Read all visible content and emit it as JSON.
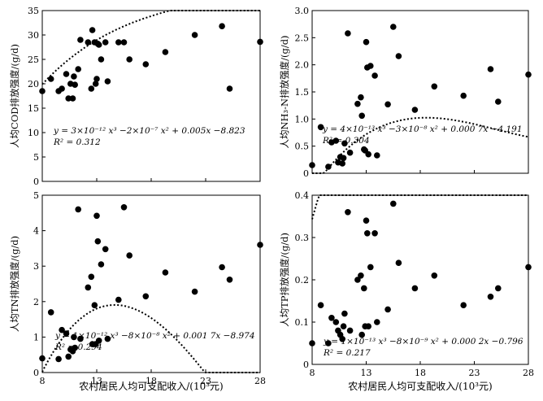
{
  "figure": {
    "xlabel_bottom": "农村居民人均可支配收入/(10³元)"
  },
  "chart_data": [
    {
      "type": "scatter",
      "ylabel": "人均COD排放强度/(g/d)",
      "xlim": [
        8,
        28
      ],
      "ylim": [
        0,
        35
      ],
      "xticks": [
        8,
        13,
        18,
        23,
        28
      ],
      "yticks": [
        0,
        5,
        10,
        15,
        20,
        25,
        30,
        35
      ],
      "ytick_labels": [
        "0",
        "5",
        "10",
        "15",
        "20",
        "25",
        "30",
        "35"
      ],
      "show_x_tick_labels": false,
      "grid": false,
      "equation": "y = 3×10⁻¹² x³ −2×10⁻⁷ x² + 0.005x −8.823",
      "r2": "R² = 0.312",
      "fit": [
        3e-12,
        -2e-07,
        0.005,
        -8.823
      ],
      "x": [
        8.0,
        8.8,
        9.5,
        9.8,
        10.2,
        10.4,
        10.6,
        10.8,
        10.9,
        11.0,
        11.3,
        11.5,
        12.2,
        12.5,
        12.6,
        12.8,
        12.9,
        13.0,
        13.1,
        13.2,
        13.4,
        13.8,
        14.0,
        15.0,
        15.5,
        16.0,
        17.5,
        19.3,
        22.0,
        24.5,
        25.2,
        28.0
      ],
      "y": [
        18.5,
        21.0,
        18.5,
        19.0,
        22.0,
        17.0,
        20.0,
        17.0,
        21.5,
        19.8,
        23.0,
        29.0,
        28.5,
        19.0,
        31.0,
        28.5,
        20.0,
        21.0,
        28.2,
        28.0,
        25.0,
        28.5,
        20.5,
        28.5,
        28.5,
        25.0,
        24.0,
        26.5,
        30.0,
        31.8,
        19.0,
        28.6
      ]
    },
    {
      "type": "scatter",
      "ylabel": "人均NH₃-N排放强度/(g/d)",
      "xlim": [
        8,
        28
      ],
      "ylim": [
        0,
        3.0
      ],
      "xticks": [
        8,
        13,
        18,
        23,
        28
      ],
      "yticks": [
        0,
        0.5,
        1.0,
        1.5,
        2.0,
        2.5,
        3.0
      ],
      "ytick_labels": [
        "0",
        "0.5",
        "1.0",
        "1.5",
        "2.0",
        "2.5",
        "3.0"
      ],
      "show_x_tick_labels": false,
      "grid": false,
      "equation": "y = 4×10⁻¹³ x³ −3×10⁻⁸ x² + 0.000 7x −4.191",
      "r2": "R² = 0.304",
      "fit": [
        4e-13,
        -3e-08,
        0.0007,
        -4.191
      ],
      "x": [
        8.0,
        8.8,
        9.5,
        9.8,
        10.2,
        10.4,
        10.6,
        10.8,
        10.9,
        11.0,
        11.3,
        11.5,
        12.2,
        12.5,
        12.6,
        12.8,
        12.9,
        13.0,
        13.1,
        13.2,
        13.4,
        13.8,
        14.0,
        15.0,
        15.5,
        16.0,
        17.5,
        19.3,
        22.0,
        24.5,
        25.2,
        28.0
      ],
      "y": [
        0.15,
        0.85,
        0.12,
        0.57,
        0.6,
        0.2,
        0.3,
        0.18,
        0.28,
        0.55,
        2.58,
        0.38,
        1.28,
        1.4,
        1.06,
        0.44,
        0.42,
        2.42,
        1.95,
        0.35,
        1.98,
        1.8,
        0.33,
        1.27,
        2.7,
        2.16,
        1.17,
        1.6,
        1.43,
        1.92,
        1.32,
        1.82
      ]
    },
    {
      "type": "scatter",
      "ylabel": "人均TN排放强度/(g/d)",
      "xlim": [
        8,
        28
      ],
      "ylim": [
        0,
        5
      ],
      "xticks": [
        8,
        13,
        18,
        23,
        28
      ],
      "yticks": [
        0,
        1,
        2,
        3,
        4,
        5
      ],
      "ytick_labels": [
        "0",
        "1",
        "2",
        "3",
        "4",
        "5"
      ],
      "show_x_tick_labels": true,
      "grid": false,
      "equation": "y = 1×10⁻¹² x³ −8×10⁻⁸ x² + 0.001 7x −8.974",
      "r2": "R² = 0.294",
      "fit": [
        1e-12,
        -8e-08,
        0.0017,
        -8.974
      ],
      "x": [
        8.0,
        8.8,
        9.5,
        9.8,
        10.2,
        10.4,
        10.6,
        10.8,
        10.9,
        11.0,
        11.3,
        11.5,
        12.2,
        12.5,
        12.6,
        12.8,
        12.9,
        13.0,
        13.1,
        13.2,
        13.4,
        13.8,
        14.0,
        15.0,
        15.5,
        16.0,
        17.5,
        19.3,
        22.0,
        24.5,
        25.2,
        28.0
      ],
      "y": [
        0.4,
        1.7,
        0.38,
        1.2,
        1.1,
        0.45,
        0.65,
        0.6,
        1.0,
        0.7,
        4.6,
        0.95,
        2.4,
        2.7,
        0.8,
        1.9,
        0.8,
        4.42,
        3.7,
        0.9,
        3.05,
        3.48,
        0.95,
        2.05,
        4.66,
        3.3,
        2.15,
        2.82,
        2.28,
        2.97,
        2.62,
        3.6
      ]
    },
    {
      "type": "scatter",
      "ylabel": "人均TP排放强度/(g/d)",
      "xlim": [
        8,
        28
      ],
      "ylim": [
        0,
        0.4
      ],
      "xticks": [
        8,
        13,
        18,
        23,
        28
      ],
      "yticks": [
        0,
        0.1,
        0.2,
        0.3,
        0.4
      ],
      "ytick_labels": [
        "0",
        "0.1",
        "0.2",
        "0.3",
        "0.4"
      ],
      "show_x_tick_labels": true,
      "grid": false,
      "equation": "y = 1×10⁻¹³ x³ −8×10⁻⁹ x² + 0.000 2x −0.796",
      "r2": "R² = 0.217",
      "fit": [
        1e-13,
        -8e-09,
        0.0002,
        -0.796
      ],
      "x": [
        8.0,
        8.8,
        9.5,
        9.8,
        10.2,
        10.4,
        10.6,
        10.8,
        10.9,
        11.0,
        11.3,
        11.5,
        12.2,
        12.5,
        12.6,
        12.8,
        12.9,
        13.0,
        13.1,
        13.2,
        13.4,
        13.8,
        14.0,
        15.0,
        15.5,
        16.0,
        17.5,
        19.3,
        22.0,
        24.5,
        25.2,
        28.0
      ],
      "y": [
        0.05,
        0.14,
        0.05,
        0.11,
        0.1,
        0.08,
        0.07,
        0.06,
        0.09,
        0.12,
        0.36,
        0.08,
        0.2,
        0.21,
        0.07,
        0.18,
        0.09,
        0.34,
        0.31,
        0.09,
        0.23,
        0.31,
        0.1,
        0.13,
        0.38,
        0.24,
        0.18,
        0.21,
        0.14,
        0.16,
        0.18,
        0.23
      ]
    }
  ]
}
